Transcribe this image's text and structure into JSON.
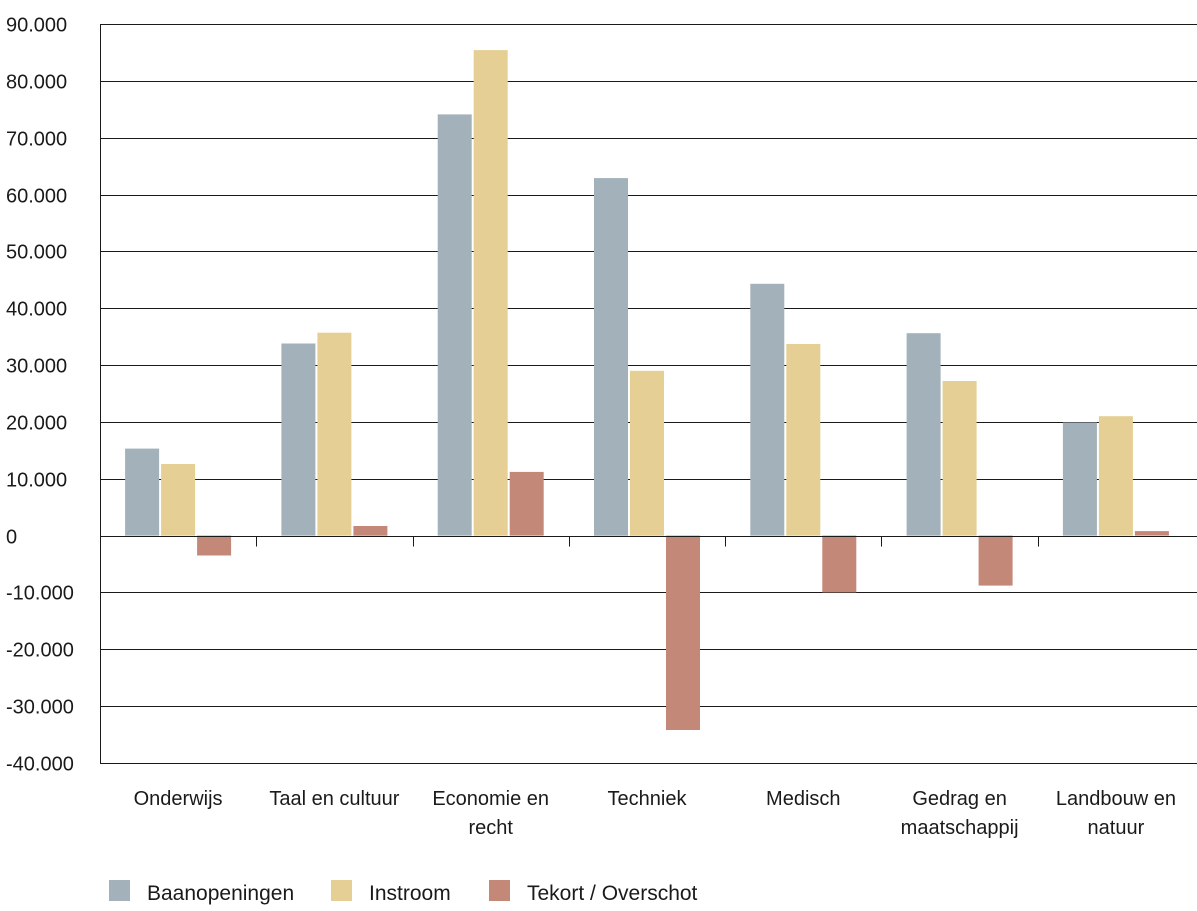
{
  "chart_data": {
    "type": "bar",
    "title": "",
    "xlabel": "",
    "ylabel": "",
    "categories": [
      [
        "Onderwijs"
      ],
      [
        "Taal en cultuur"
      ],
      [
        "Economie en",
        "recht"
      ],
      [
        "Techniek"
      ],
      [
        "Medisch"
      ],
      [
        "Gedrag en",
        "maatschappij"
      ],
      [
        "Landbouw en",
        "natuur"
      ]
    ],
    "series": [
      {
        "name": "Baanopeningen",
        "color": "#a3b1ba",
        "values": [
          15300,
          33800,
          74100,
          62900,
          44300,
          35600,
          19900
        ]
      },
      {
        "name": "Instroom",
        "color": "#e6cf94",
        "values": [
          12600,
          35700,
          85400,
          29000,
          33700,
          27200,
          21000
        ]
      },
      {
        "name": "Tekort / Overschot",
        "color": "#c48878",
        "values": [
          -3500,
          1700,
          11200,
          -34200,
          -10000,
          -8800,
          800
        ]
      }
    ],
    "ylim": [
      -40000,
      90000
    ],
    "yticks": [
      90000,
      80000,
      70000,
      60000,
      50000,
      40000,
      30000,
      20000,
      10000,
      0,
      -10000,
      -20000,
      -30000,
      -40000
    ],
    "ytick_labels": [
      "90.000",
      "80.000",
      "70.000",
      "60.000",
      "50.000",
      "40.000",
      "30.000",
      "20.000",
      "10.000",
      "0",
      "-10.000",
      "-20.000",
      "-30.000",
      "-40.000"
    ],
    "grid": true,
    "legend": {
      "position": "bottom-left"
    }
  }
}
